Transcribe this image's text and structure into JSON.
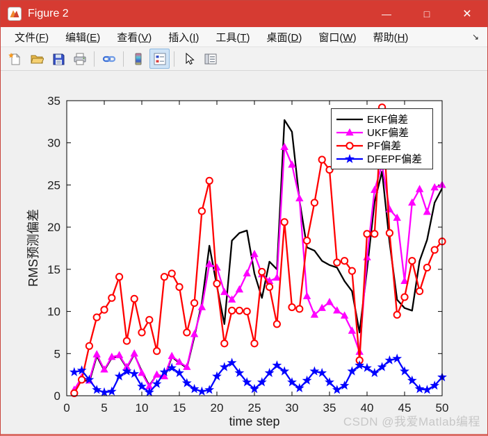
{
  "window": {
    "title": "Figure 2"
  },
  "window_controls": {
    "minimize_icon": "—",
    "maximize_icon": "□",
    "close_icon": "✕"
  },
  "menubar": {
    "items": [
      {
        "pre": "文件(",
        "key": "F",
        "post": ")"
      },
      {
        "pre": "编辑(",
        "key": "E",
        "post": ")"
      },
      {
        "pre": "查看(",
        "key": "V",
        "post": ")"
      },
      {
        "pre": "插入(",
        "key": "I",
        "post": ")"
      },
      {
        "pre": "工具(",
        "key": "T",
        "post": ")"
      },
      {
        "pre": "桌面(",
        "key": "D",
        "post": ")"
      },
      {
        "pre": "窗口(",
        "key": "W",
        "post": ")"
      },
      {
        "pre": "帮助(",
        "key": "H",
        "post": ")"
      }
    ],
    "dock_arrow_icon": "↘"
  },
  "toolbar": {
    "buttons": [
      {
        "name": "new-figure"
      },
      {
        "name": "open-file"
      },
      {
        "name": "save-figure"
      },
      {
        "name": "print-figure"
      },
      {
        "name": "link-plot"
      },
      {
        "name": "insert-colorbar"
      },
      {
        "name": "insert-legend",
        "active": true
      },
      {
        "name": "edit-plot"
      },
      {
        "name": "property-inspector"
      }
    ]
  },
  "watermark": "CSDN @我爱Matlab编程",
  "chart_data": {
    "type": "line",
    "xlabel": "time step",
    "ylabel": "RMS预测偏差",
    "xlim": [
      0,
      50
    ],
    "ylim": [
      0,
      35
    ],
    "xticks": [
      0,
      5,
      10,
      15,
      20,
      25,
      30,
      35,
      40,
      45,
      50
    ],
    "yticks": [
      0,
      5,
      10,
      15,
      20,
      25,
      30,
      35
    ],
    "grid": false,
    "legend_position": "top-right",
    "x": [
      1,
      2,
      3,
      4,
      5,
      6,
      7,
      8,
      9,
      10,
      11,
      12,
      13,
      14,
      15,
      16,
      17,
      18,
      19,
      20,
      21,
      22,
      23,
      24,
      25,
      26,
      27,
      28,
      29,
      30,
      31,
      32,
      33,
      34,
      35,
      36,
      37,
      38,
      39,
      40,
      41,
      42,
      43,
      44,
      45,
      46,
      47,
      48,
      49,
      50
    ],
    "series": [
      {
        "name": "EKF偏差",
        "color": "#000000",
        "marker": "none",
        "values": [
          0.4,
          2.0,
          1.6,
          4.7,
          3.0,
          4.5,
          4.7,
          3.3,
          4.9,
          2.9,
          1.2,
          2.5,
          2.1,
          4.6,
          3.9,
          3.3,
          7.0,
          11.0,
          17.8,
          13.0,
          8.5,
          18.4,
          19.3,
          19.6,
          14.5,
          11.6,
          15.9,
          15.0,
          32.7,
          31.3,
          23.2,
          17.6,
          17.2,
          16.0,
          15.5,
          15.2,
          13.6,
          12.4,
          7.5,
          15.0,
          23.0,
          26.6,
          18.2,
          11.4,
          10.4,
          10.1,
          16.0,
          18.5,
          22.9,
          24.6
        ]
      },
      {
        "name": "UKF偏差",
        "color": "#ff00ff",
        "marker": "triangle",
        "values": [
          0.7,
          2.2,
          1.8,
          4.9,
          3.1,
          4.6,
          4.8,
          3.4,
          5.0,
          2.7,
          1.1,
          2.5,
          2.3,
          4.7,
          4.0,
          3.4,
          7.3,
          10.5,
          15.6,
          15.2,
          12.3,
          11.4,
          12.6,
          14.5,
          16.8,
          14.4,
          13.6,
          14.0,
          29.5,
          27.4,
          23.4,
          11.8,
          9.6,
          10.4,
          11.1,
          10.1,
          9.5,
          7.7,
          5.2,
          16.4,
          24.4,
          27.4,
          22.1,
          21.1,
          13.6,
          22.9,
          24.5,
          21.8,
          24.7,
          25.0
        ]
      },
      {
        "name": "PF偏差",
        "color": "#ff0000",
        "marker": "circle-open",
        "values": [
          0.3,
          1.9,
          5.9,
          9.3,
          10.2,
          11.6,
          14.1,
          6.5,
          11.5,
          7.5,
          9.0,
          5.3,
          14.1,
          14.5,
          12.9,
          7.5,
          11.0,
          21.9,
          25.5,
          13.3,
          6.2,
          10.1,
          10.1,
          10.0,
          6.2,
          14.7,
          12.9,
          8.5,
          20.6,
          10.5,
          10.3,
          18.4,
          22.9,
          28.0,
          26.8,
          15.8,
          16.0,
          14.8,
          4.2,
          19.2,
          19.2,
          34.2,
          19.3,
          9.6,
          11.7,
          16.0,
          12.4,
          15.2,
          17.3,
          18.3
        ]
      },
      {
        "name": "DFEPF偏差",
        "color": "#0000ff",
        "marker": "star",
        "values": [
          2.8,
          3.0,
          1.9,
          0.7,
          0.4,
          0.5,
          2.3,
          2.9,
          2.6,
          1.1,
          0.4,
          1.4,
          2.8,
          3.3,
          2.7,
          1.5,
          0.8,
          0.5,
          0.7,
          2.3,
          3.4,
          3.9,
          2.7,
          1.6,
          0.8,
          1.6,
          2.7,
          3.6,
          2.9,
          1.6,
          0.9,
          1.8,
          2.9,
          2.7,
          1.6,
          0.7,
          1.2,
          2.9,
          3.6,
          3.3,
          2.7,
          3.4,
          4.2,
          4.4,
          2.9,
          1.8,
          0.8,
          0.7,
          1.2,
          2.2
        ]
      }
    ]
  }
}
